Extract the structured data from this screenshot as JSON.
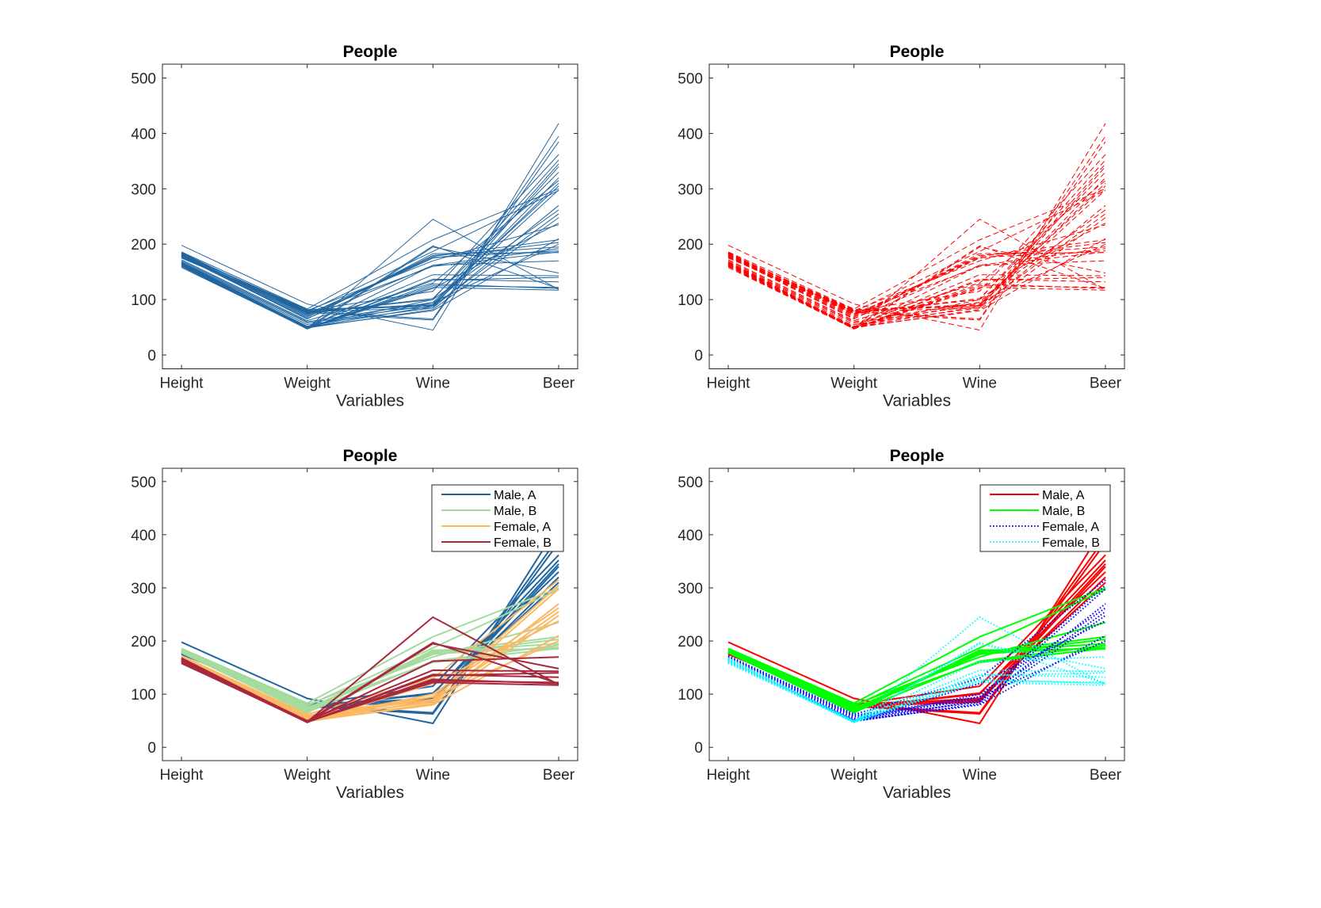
{
  "chart_data": [
    {
      "type": "line",
      "subtype": "parallel-coordinates",
      "title": "People",
      "xlabel": "Variables",
      "ylabel": "",
      "categories": [
        "Height",
        "Weight",
        "Wine",
        "Beer"
      ],
      "ylim": [
        -25,
        525
      ],
      "yticks": [
        0,
        100,
        200,
        300,
        400,
        500
      ],
      "grouping": "none",
      "style": {
        "color": "#2166a0",
        "dash": "solid",
        "width": 1
      },
      "legend": null
    },
    {
      "type": "line",
      "subtype": "parallel-coordinates",
      "title": "People",
      "xlabel": "Variables",
      "ylabel": "",
      "categories": [
        "Height",
        "Weight",
        "Wine",
        "Beer"
      ],
      "ylim": [
        -25,
        525
      ],
      "yticks": [
        0,
        100,
        200,
        300,
        400,
        500
      ],
      "grouping": "none",
      "style": {
        "color": "#ff0000",
        "dash": "dashed",
        "width": 1
      },
      "legend": null
    },
    {
      "type": "line",
      "subtype": "parallel-coordinates",
      "title": "People",
      "xlabel": "Variables",
      "ylabel": "",
      "categories": [
        "Height",
        "Weight",
        "Wine",
        "Beer"
      ],
      "ylim": [
        -25,
        525
      ],
      "yticks": [
        0,
        100,
        200,
        300,
        400,
        500
      ],
      "grouping": "group",
      "group_styles": [
        {
          "name": "Male, A",
          "color": "#2166a0",
          "dash": "solid"
        },
        {
          "name": "Male, B",
          "color": "#a6dba0",
          "dash": "solid"
        },
        {
          "name": "Female, A",
          "color": "#fdb863",
          "dash": "solid"
        },
        {
          "name": "Female, B",
          "color": "#a8283e",
          "dash": "solid"
        }
      ],
      "legend": "top-right"
    },
    {
      "type": "line",
      "subtype": "parallel-coordinates",
      "title": "People",
      "xlabel": "Variables",
      "ylabel": "",
      "categories": [
        "Height",
        "Weight",
        "Wine",
        "Beer"
      ],
      "ylim": [
        -25,
        525
      ],
      "yticks": [
        0,
        100,
        200,
        300,
        400,
        500
      ],
      "grouping": "group",
      "group_styles": [
        {
          "name": "Male, A",
          "color": "#ff0000",
          "dash": "solid"
        },
        {
          "name": "Male, B",
          "color": "#00ff00",
          "dash": "solid"
        },
        {
          "name": "Female, A",
          "color": "#0000ff",
          "dash": "dotted"
        },
        {
          "name": "Female, B",
          "color": "#00ffff",
          "dash": "dotted"
        }
      ],
      "legend": "top-right"
    }
  ],
  "observations": {
    "variables": [
      "Height",
      "Weight",
      "Wine",
      "Beer"
    ],
    "groups": [
      "Male, A",
      "Male, B",
      "Female, A",
      "Female, B"
    ],
    "rows": [
      {
        "group": 0,
        "values": [
          198,
          92,
          45,
          418
        ]
      },
      {
        "group": 0,
        "values": [
          183,
          79,
          65,
          395
        ]
      },
      {
        "group": 0,
        "values": [
          180,
          77,
          63,
          385
        ]
      },
      {
        "group": 0,
        "values": [
          178,
          80,
          115,
          362
        ]
      },
      {
        "group": 0,
        "values": [
          176,
          76,
          100,
          352
        ]
      },
      {
        "group": 0,
        "values": [
          182,
          82,
          90,
          345
        ]
      },
      {
        "group": 0,
        "values": [
          179,
          78,
          85,
          340
        ]
      },
      {
        "group": 0,
        "values": [
          177,
          75,
          102,
          330
        ]
      },
      {
        "group": 0,
        "values": [
          181,
          81,
          88,
          320
        ]
      },
      {
        "group": 0,
        "values": [
          175,
          79,
          92,
          310
        ]
      },
      {
        "group": 1,
        "values": [
          186,
          83,
          208,
          300
        ]
      },
      {
        "group": 1,
        "values": [
          184,
          78,
          187,
          297
        ]
      },
      {
        "group": 1,
        "values": [
          182,
          72,
          178,
          208
        ]
      },
      {
        "group": 1,
        "values": [
          181,
          70,
          175,
          203
        ]
      },
      {
        "group": 1,
        "values": [
          180,
          68,
          180,
          195
        ]
      },
      {
        "group": 1,
        "values": [
          179,
          66,
          162,
          192
        ]
      },
      {
        "group": 1,
        "values": [
          185,
          75,
          160,
          186
        ]
      },
      {
        "group": 1,
        "values": [
          178,
          65,
          183,
          185
        ]
      },
      {
        "group": 1,
        "values": [
          183,
          80,
          170,
          235
        ]
      },
      {
        "group": 1,
        "values": [
          181,
          73,
          176,
          188
        ]
      },
      {
        "group": 2,
        "values": [
          172,
          62,
          130,
          315
        ]
      },
      {
        "group": 2,
        "values": [
          170,
          60,
          95,
          305
        ]
      },
      {
        "group": 2,
        "values": [
          168,
          58,
          90,
          298
        ]
      },
      {
        "group": 2,
        "values": [
          167,
          55,
          85,
          270
        ]
      },
      {
        "group": 2,
        "values": [
          166,
          52,
          100,
          262
        ]
      },
      {
        "group": 2,
        "values": [
          165,
          50,
          88,
          255
        ]
      },
      {
        "group": 2,
        "values": [
          164,
          49,
          82,
          248
        ]
      },
      {
        "group": 2,
        "values": [
          163,
          48,
          120,
          238
        ]
      },
      {
        "group": 2,
        "values": [
          161,
          50,
          80,
          210
        ]
      },
      {
        "group": 2,
        "values": [
          160,
          51,
          95,
          200
        ]
      },
      {
        "group": 3,
        "values": [
          168,
          48,
          245,
          118
        ]
      },
      {
        "group": 3,
        "values": [
          167,
          49,
          197,
          120
        ]
      },
      {
        "group": 3,
        "values": [
          166,
          47,
          195,
          148
        ]
      },
      {
        "group": 3,
        "values": [
          165,
          48,
          162,
          170
        ]
      },
      {
        "group": 3,
        "values": [
          164,
          50,
          145,
          143
        ]
      },
      {
        "group": 3,
        "values": [
          163,
          47,
          137,
          132
        ]
      },
      {
        "group": 3,
        "values": [
          162,
          48,
          128,
          120
        ]
      },
      {
        "group": 3,
        "values": [
          161,
          49,
          122,
          117
        ]
      },
      {
        "group": 3,
        "values": [
          160,
          47,
          135,
          140
        ]
      },
      {
        "group": 3,
        "values": [
          158,
          48,
          125,
          122
        ]
      }
    ]
  }
}
